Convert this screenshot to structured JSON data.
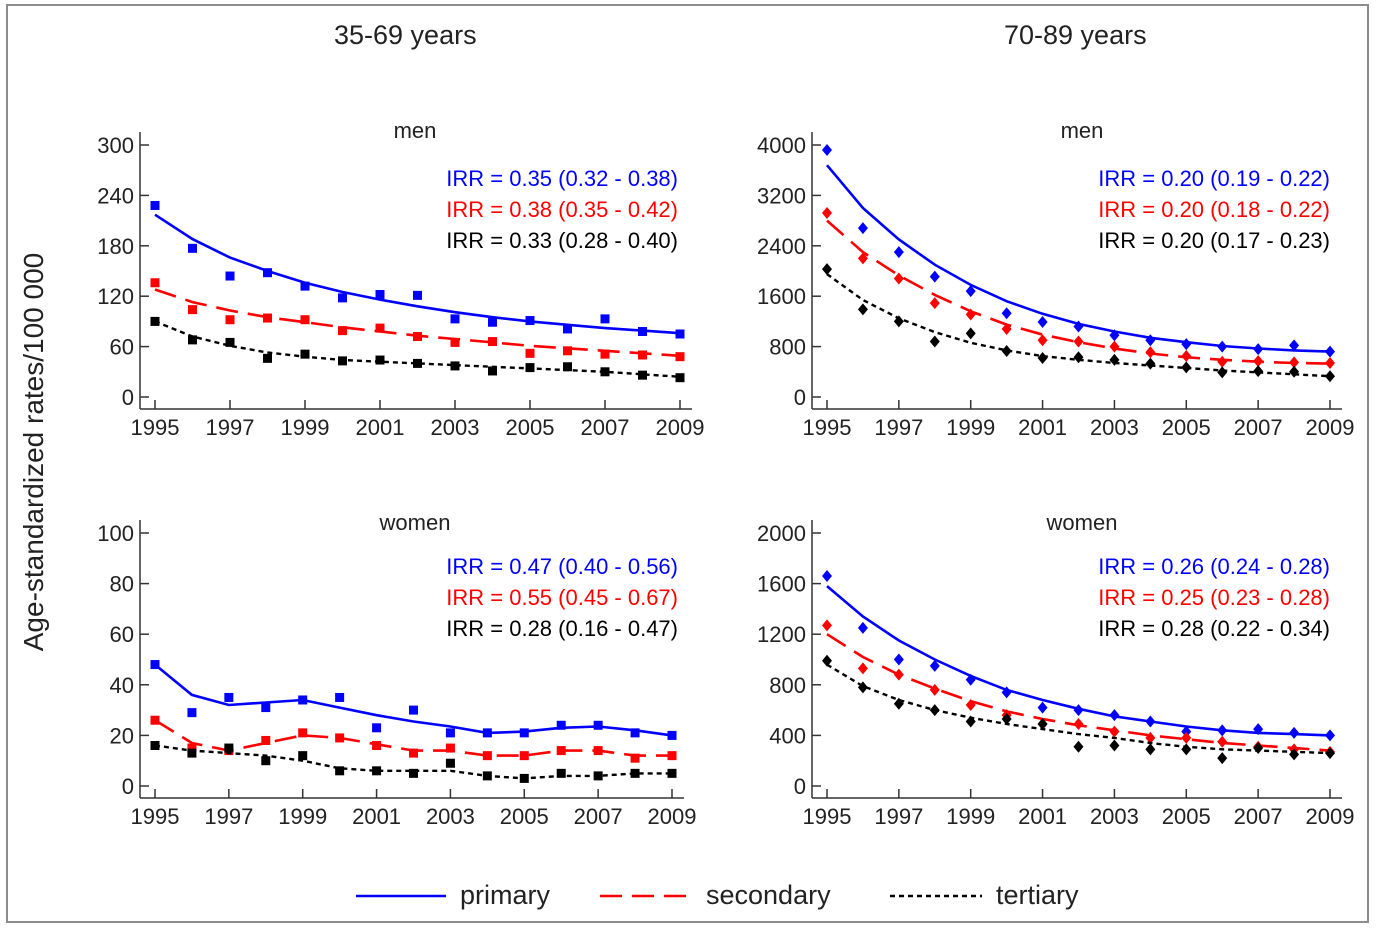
{
  "figure": {
    "column_titles": [
      "35-69 years",
      "70-89 years"
    ],
    "y_axis_label": "Age-standardized rates/100 000",
    "legend": [
      {
        "name": "primary",
        "color": "#0000ff",
        "dash": "solid"
      },
      {
        "name": "secondary",
        "color": "#ff0000",
        "dash": "long-dash"
      },
      {
        "name": "tertiary",
        "color": "#000000",
        "dash": "short-dash"
      }
    ]
  },
  "chart_data": [
    {
      "type": "scatter",
      "title": "men",
      "column": "35-69 years",
      "x": [
        1995,
        1996,
        1997,
        1998,
        1999,
        2000,
        2001,
        2002,
        2003,
        2004,
        2005,
        2006,
        2007,
        2008,
        2009
      ],
      "x_ticks": [
        1995,
        1997,
        1999,
        2001,
        2003,
        2005,
        2007,
        2009
      ],
      "y_ticks": [
        0,
        60,
        120,
        180,
        240,
        300
      ],
      "ylim": [
        0,
        300
      ],
      "marker": "square",
      "series": [
        {
          "name": "primary",
          "color": "#0000ff",
          "values": [
            228,
            177,
            144,
            148,
            132,
            118,
            122,
            121,
            93,
            89,
            91,
            81,
            93,
            78,
            75
          ],
          "fit": [
            217,
            188,
            166,
            150,
            136,
            125,
            116,
            108,
            101,
            95,
            90,
            86,
            82,
            79,
            76
          ]
        },
        {
          "name": "secondary",
          "color": "#ff0000",
          "values": [
            136,
            104,
            92,
            94,
            92,
            79,
            82,
            72,
            65,
            66,
            52,
            55,
            51,
            50,
            48
          ],
          "fit": [
            128,
            113,
            103,
            95,
            89,
            83,
            78,
            73,
            69,
            65,
            61,
            58,
            55,
            52,
            49
          ]
        },
        {
          "name": "tertiary",
          "color": "#000000",
          "values": [
            90,
            68,
            65,
            46,
            51,
            43,
            44,
            40,
            37,
            31,
            35,
            36,
            30,
            26,
            23
          ],
          "fit": [
            90,
            72,
            61,
            53,
            48,
            44,
            42,
            40,
            38,
            36,
            34,
            32,
            30,
            27,
            24
          ]
        }
      ],
      "annotations": [
        "IRR = 0.35 (0.32 - 0.38)",
        "IRR = 0.38 (0.35 - 0.42)",
        "IRR = 0.33 (0.28 - 0.40)"
      ]
    },
    {
      "type": "scatter",
      "title": "men",
      "column": "70-89 years",
      "x": [
        1995,
        1996,
        1997,
        1998,
        1999,
        2000,
        2001,
        2002,
        2003,
        2004,
        2005,
        2006,
        2007,
        2008,
        2009
      ],
      "x_ticks": [
        1995,
        1997,
        1999,
        2001,
        2003,
        2005,
        2007,
        2009
      ],
      "y_ticks": [
        0,
        800,
        1600,
        2400,
        3200,
        4000
      ],
      "ylim": [
        0,
        4000
      ],
      "marker": "diamond",
      "series": [
        {
          "name": "primary",
          "color": "#0000ff",
          "values": [
            3920,
            2680,
            2300,
            1910,
            1680,
            1330,
            1190,
            1120,
            980,
            900,
            840,
            800,
            760,
            820,
            720
          ],
          "fit": [
            3680,
            3000,
            2500,
            2100,
            1780,
            1520,
            1320,
            1160,
            1040,
            940,
            870,
            810,
            770,
            740,
            720
          ]
        },
        {
          "name": "secondary",
          "color": "#ff0000",
          "values": [
            2920,
            2200,
            1880,
            1490,
            1310,
            1080,
            900,
            880,
            800,
            710,
            650,
            560,
            570,
            550,
            540
          ],
          "fit": [
            2800,
            2300,
            1930,
            1620,
            1360,
            1150,
            990,
            870,
            770,
            690,
            630,
            590,
            560,
            540,
            530
          ]
        },
        {
          "name": "tertiary",
          "color": "#000000",
          "values": [
            2030,
            1390,
            1200,
            880,
            1010,
            730,
            620,
            630,
            590,
            530,
            470,
            390,
            410,
            400,
            330
          ],
          "fit": [
            1950,
            1540,
            1250,
            1030,
            860,
            740,
            650,
            590,
            540,
            500,
            460,
            420,
            390,
            360,
            330
          ]
        }
      ],
      "annotations": [
        "IRR = 0.20 (0.19 - 0.22)",
        "IRR = 0.20 (0.18 - 0.22)",
        "IRR = 0.20 (0.17 - 0.23)"
      ]
    },
    {
      "type": "scatter",
      "title": "women",
      "column": "35-69 years",
      "x": [
        1995,
        1996,
        1997,
        1998,
        1999,
        2000,
        2001,
        2002,
        2003,
        2004,
        2005,
        2006,
        2007,
        2008,
        2009
      ],
      "x_ticks": [
        1995,
        1997,
        1999,
        2001,
        2003,
        2005,
        2007,
        2009
      ],
      "y_ticks": [
        0,
        20,
        40,
        60,
        80,
        100
      ],
      "ylim": [
        0,
        100
      ],
      "marker": "square",
      "series": [
        {
          "name": "primary",
          "color": "#0000ff",
          "values": [
            48,
            29,
            35,
            31,
            34,
            35,
            23,
            30,
            21,
            21,
            21,
            24,
            24,
            21,
            20
          ],
          "fit": [
            48,
            36,
            32,
            33,
            34,
            31,
            28,
            25.5,
            23.5,
            21,
            21.5,
            23,
            23.5,
            22,
            20
          ]
        },
        {
          "name": "secondary",
          "color": "#ff0000",
          "values": [
            26,
            15,
            14,
            18,
            21,
            19,
            16,
            13,
            15,
            12,
            12,
            14,
            14,
            11,
            12
          ],
          "fit": [
            26,
            17,
            14,
            17,
            20,
            19,
            16.5,
            14,
            14,
            12,
            12,
            14,
            14,
            12,
            12
          ]
        },
        {
          "name": "tertiary",
          "color": "#000000",
          "values": [
            16,
            13,
            15,
            10,
            12,
            6,
            6,
            5,
            9,
            4,
            3,
            5,
            4,
            5,
            5
          ],
          "fit": [
            16,
            14,
            13,
            12,
            10,
            7,
            6,
            6,
            6,
            4,
            3,
            4,
            4,
            5,
            5
          ]
        }
      ],
      "annotations": [
        "IRR = 0.47 (0.40 - 0.56)",
        "IRR = 0.55 (0.45 - 0.67)",
        "IRR = 0.28 (0.16 - 0.47)"
      ]
    },
    {
      "type": "scatter",
      "title": "women",
      "column": "70-89 years",
      "x": [
        1995,
        1996,
        1997,
        1998,
        1999,
        2000,
        2001,
        2002,
        2003,
        2004,
        2005,
        2006,
        2007,
        2008,
        2009
      ],
      "x_ticks": [
        1995,
        1997,
        1999,
        2001,
        2003,
        2005,
        2007,
        2009
      ],
      "y_ticks": [
        0,
        400,
        800,
        1200,
        1600,
        2000
      ],
      "ylim": [
        0,
        2000
      ],
      "marker": "diamond",
      "series": [
        {
          "name": "primary",
          "color": "#0000ff",
          "values": [
            1660,
            1250,
            1000,
            950,
            840,
            740,
            620,
            600,
            560,
            510,
            430,
            440,
            450,
            420,
            400
          ],
          "fit": [
            1580,
            1340,
            1150,
            1000,
            870,
            760,
            680,
            610,
            550,
            510,
            470,
            440,
            420,
            410,
            400
          ]
        },
        {
          "name": "secondary",
          "color": "#ff0000",
          "values": [
            1270,
            930,
            880,
            760,
            640,
            560,
            490,
            490,
            430,
            380,
            380,
            350,
            310,
            290,
            270
          ],
          "fit": [
            1200,
            1020,
            880,
            770,
            670,
            590,
            530,
            480,
            440,
            400,
            370,
            340,
            320,
            300,
            280
          ]
        },
        {
          "name": "tertiary",
          "color": "#000000",
          "values": [
            990,
            780,
            650,
            600,
            510,
            530,
            490,
            310,
            320,
            290,
            290,
            220,
            300,
            250,
            260
          ],
          "fit": [
            960,
            790,
            680,
            600,
            540,
            490,
            450,
            410,
            380,
            340,
            310,
            290,
            280,
            270,
            260
          ]
        }
      ],
      "annotations": [
        "IRR = 0.26 (0.24 - 0.28)",
        "IRR = 0.25 (0.23 - 0.28)",
        "IRR = 0.28 (0.22 - 0.34)"
      ]
    }
  ]
}
